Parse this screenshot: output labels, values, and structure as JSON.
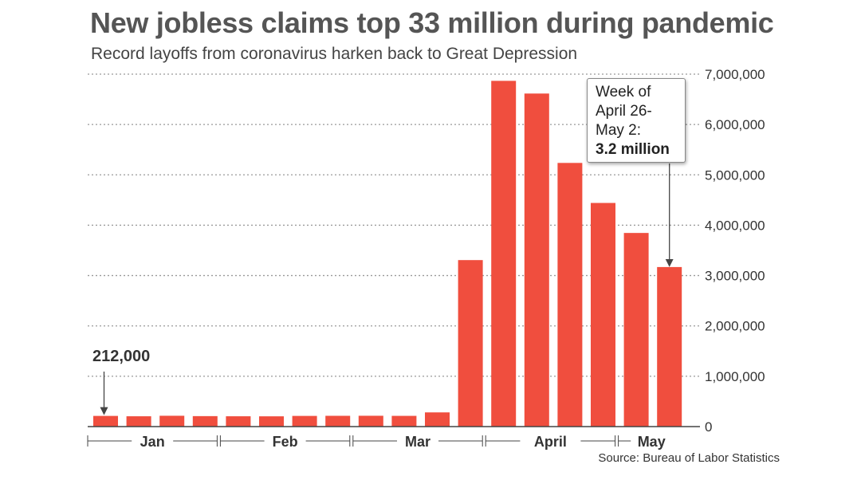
{
  "title": "New jobless claims top 33 million during pandemic",
  "subtitle": "Record layoffs from coronavirus harken back to Great Depression",
  "source": "Source: Bureau of Labor Statistics",
  "colors": {
    "bar": "#f04e3e",
    "grid": "#999999",
    "axis": "#444444"
  },
  "annotations": {
    "first_value": "212,000",
    "callout_lines": [
      "Week of",
      "April 26-",
      "May 2:"
    ],
    "callout_bold": "3.2 million"
  },
  "chart_data": {
    "type": "bar",
    "title": "New jobless claims top 33 million during pandemic",
    "xlabel": "",
    "ylabel": "",
    "ylim": [
      0,
      7000000
    ],
    "yticks": [
      0,
      1000000,
      2000000,
      3000000,
      4000000,
      5000000,
      6000000,
      7000000
    ],
    "ytick_labels": [
      "0",
      "1,000,000",
      "2,000,000",
      "3,000,000",
      "4,000,000",
      "5,000,000",
      "6,000,000",
      "7,000,000"
    ],
    "grid": true,
    "values": [
      212000,
      205000,
      215000,
      208000,
      205000,
      204000,
      212000,
      214000,
      215000,
      213000,
      282000,
      3307000,
      6867000,
      6615000,
      5237000,
      4442000,
      3846000,
      3169000
    ],
    "months": [
      {
        "label": "Jan",
        "weeks": 4
      },
      {
        "label": "Feb",
        "weeks": 4
      },
      {
        "label": "Mar",
        "weeks": 4
      },
      {
        "label": "April",
        "weeks": 4
      },
      {
        "label": "May",
        "weeks": 2
      }
    ]
  }
}
